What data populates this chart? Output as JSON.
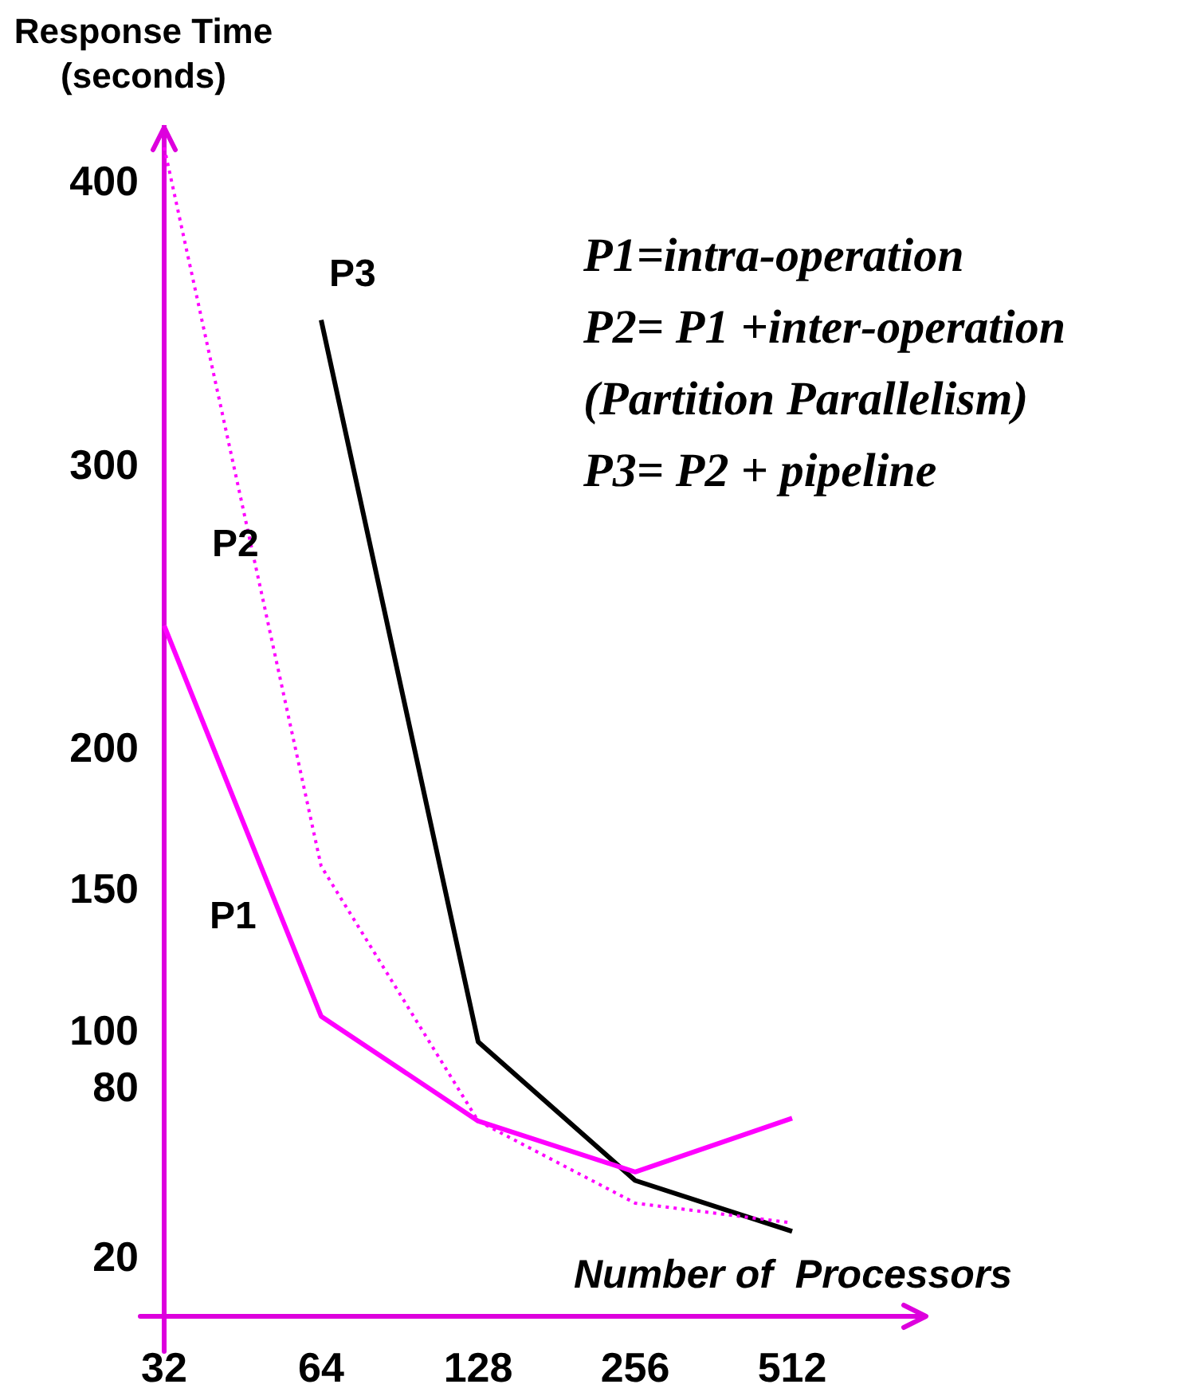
{
  "chart_data": {
    "type": "line",
    "ylabel": "Response Time (seconds)",
    "xlabel": "Number of  Processors",
    "categories": [
      "32",
      "64",
      "128",
      "256",
      "512"
    ],
    "series": [
      {
        "name": "P1",
        "color": "#ff00ff",
        "line_style": "solid",
        "values": [
          244,
          106,
          69,
          51,
          70
        ]
      },
      {
        "name": "P2",
        "color": "#ff00ff",
        "line_style": "dotted",
        "values": [
          413,
          159,
          69,
          40,
          33
        ]
      },
      {
        "name": "P3",
        "color": "#000000",
        "line_style": "solid",
        "values": [
          null,
          352,
          97,
          48,
          30
        ]
      }
    ],
    "ylim": [
      0,
      420
    ],
    "yticks": [
      20,
      80,
      100,
      150,
      200,
      300,
      400
    ],
    "annotations": [
      "P1=intra-operation",
      "P2= P1 +inter-operation",
      "(Partition Parallelism)",
      "P3= P2 + pipeline"
    ],
    "grid": false,
    "legend": false,
    "marker": "none"
  }
}
